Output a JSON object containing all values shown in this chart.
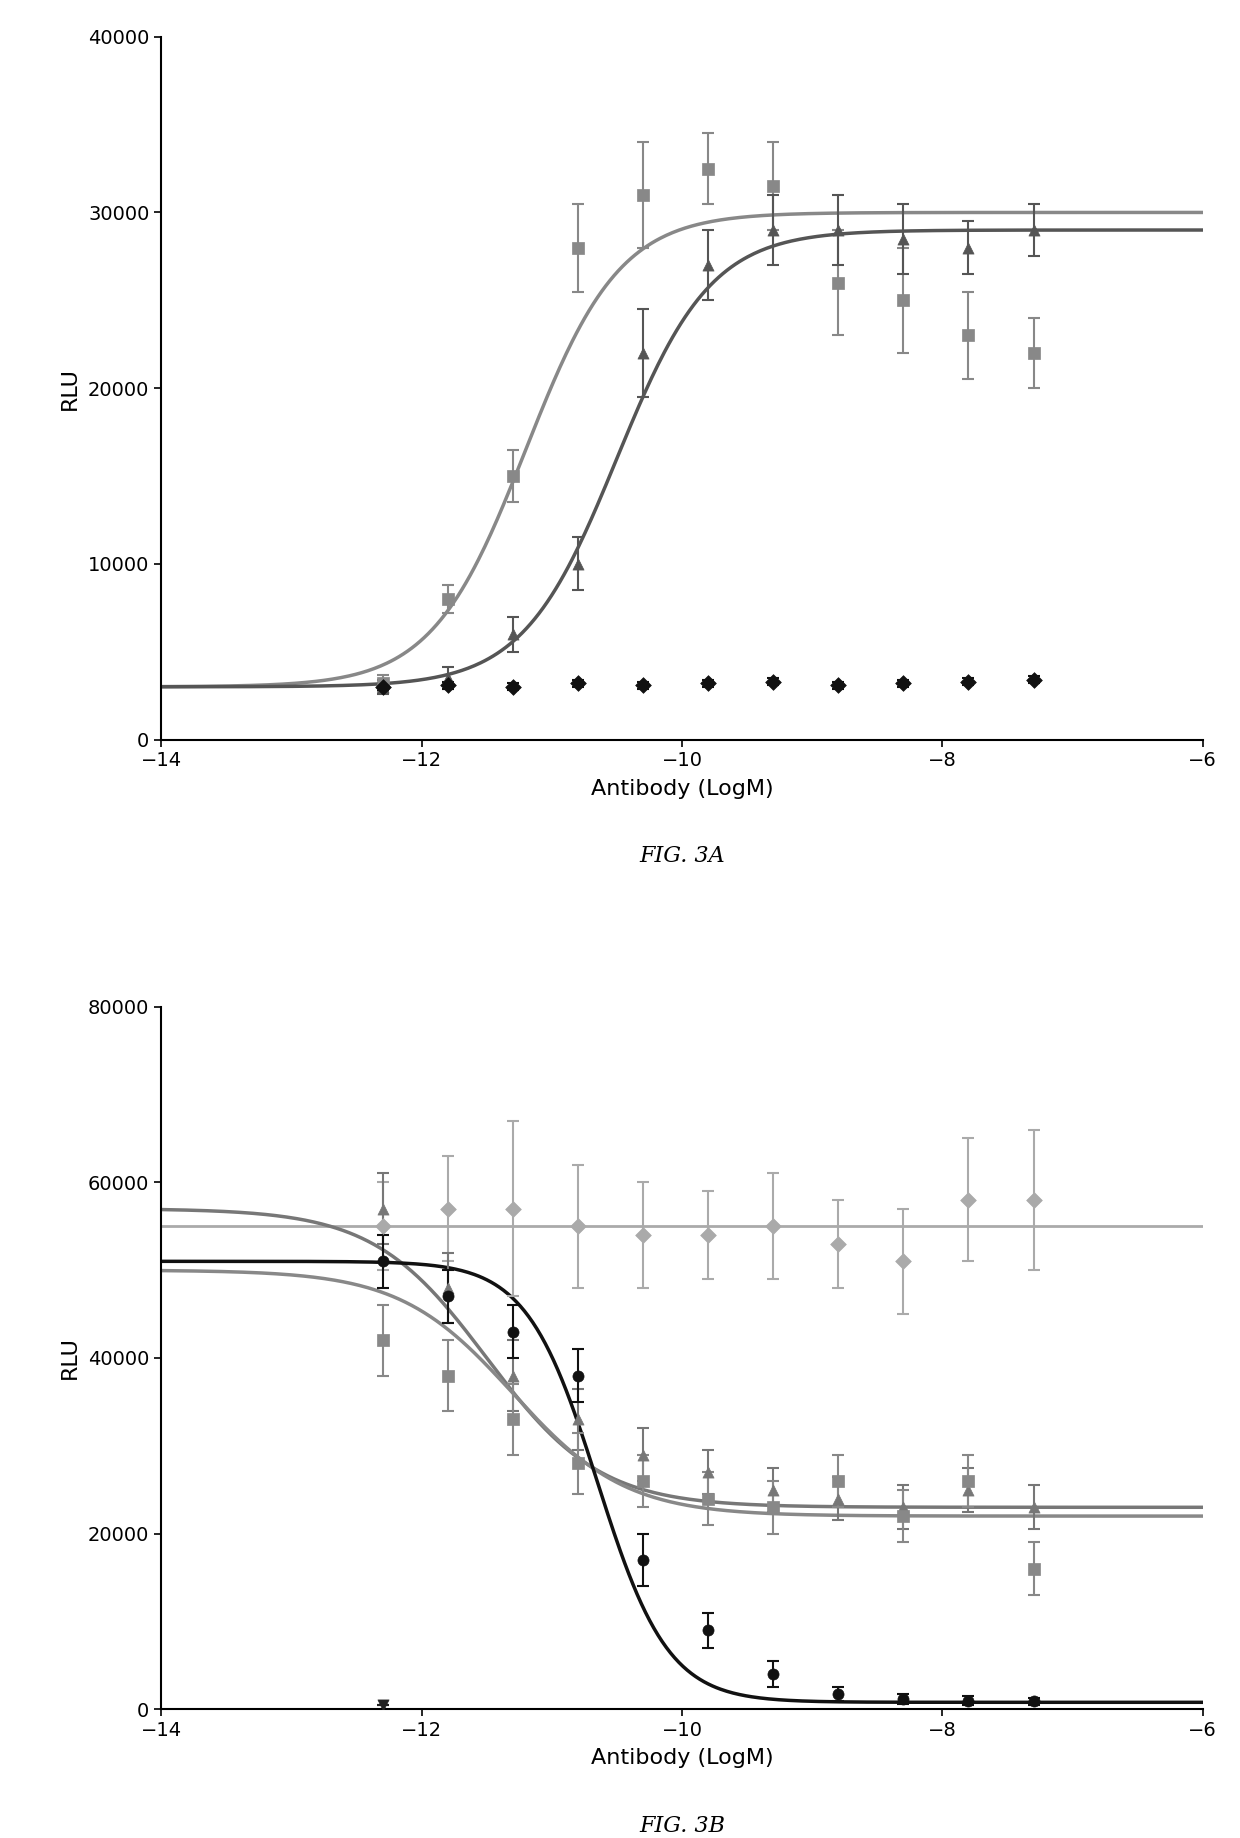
{
  "fig3a": {
    "xlim": [
      -14,
      -6
    ],
    "ylim": [
      0,
      40000
    ],
    "yticks": [
      0,
      10000,
      20000,
      30000,
      40000
    ],
    "xlabel": "Antibody (LogM)",
    "ylabel": "RLU",
    "caption": "FIG. 3A",
    "series": [
      {
        "name": "squares_gray",
        "marker": "s",
        "color": "#888888",
        "x_data": [
          -12.3,
          -11.8,
          -11.3,
          -10.8,
          -10.3,
          -9.8,
          -9.3,
          -8.8,
          -8.3,
          -7.8,
          -7.3
        ],
        "y_data": [
          3200,
          8000,
          15000,
          28000,
          31000,
          32500,
          31500,
          26000,
          25000,
          23000,
          22000
        ],
        "y_err": [
          500,
          800,
          1500,
          2500,
          3000,
          2000,
          2500,
          3000,
          3000,
          2500,
          2000
        ],
        "sigmoid": true,
        "sig_bottom": 3000,
        "sig_top": 30000,
        "sig_ec50": -11.2,
        "sig_hill": 1.2,
        "decreasing": false
      },
      {
        "name": "triangles_gray",
        "marker": "^",
        "color": "#555555",
        "x_data": [
          -12.3,
          -11.8,
          -11.3,
          -10.8,
          -10.3,
          -9.8,
          -9.3,
          -8.8,
          -8.3,
          -7.8,
          -7.3
        ],
        "y_data": [
          3000,
          3500,
          6000,
          10000,
          22000,
          27000,
          29000,
          29000,
          28500,
          28000,
          29000
        ],
        "y_err": [
          400,
          600,
          1000,
          1500,
          2500,
          2000,
          2000,
          2000,
          2000,
          1500,
          1500
        ],
        "sigmoid": true,
        "sig_bottom": 3000,
        "sig_top": 29000,
        "sig_ec50": -10.5,
        "sig_hill": 1.2,
        "decreasing": false
      },
      {
        "name": "diamonds_black",
        "marker": "D",
        "color": "#111111",
        "x_data": [
          -12.3,
          -11.8,
          -11.3,
          -10.8,
          -10.3,
          -9.8,
          -9.3,
          -8.8,
          -8.3,
          -7.8,
          -7.3
        ],
        "y_data": [
          3000,
          3100,
          3000,
          3200,
          3100,
          3200,
          3300,
          3100,
          3200,
          3300,
          3400
        ],
        "y_err": [
          200,
          200,
          200,
          200,
          200,
          200,
          200,
          200,
          200,
          200,
          200
        ],
        "sigmoid": false
      }
    ]
  },
  "fig3b": {
    "xlim": [
      -14,
      -6
    ],
    "ylim": [
      0,
      80000
    ],
    "yticks": [
      0,
      20000,
      40000,
      60000,
      80000
    ],
    "xlabel": "Antibody (LogM)",
    "ylabel": "RLU",
    "caption": "FIG. 3B",
    "series": [
      {
        "name": "diamonds_light",
        "marker": "D",
        "color": "#aaaaaa",
        "x_data": [
          -12.3,
          -11.8,
          -11.3,
          -10.8,
          -10.3,
          -9.8,
          -9.3,
          -8.8,
          -8.3,
          -7.8,
          -7.3
        ],
        "y_data": [
          55000,
          57000,
          57000,
          55000,
          54000,
          54000,
          55000,
          53000,
          51000,
          58000,
          58000
        ],
        "y_err": [
          5000,
          6000,
          10000,
          7000,
          6000,
          5000,
          6000,
          5000,
          6000,
          7000,
          8000
        ],
        "sigmoid": false,
        "flat_line": true,
        "flat_y": 55000,
        "flat_color": "#aaaaaa"
      },
      {
        "name": "triangles_gray",
        "marker": "^",
        "color": "#777777",
        "x_data": [
          -12.3,
          -11.8,
          -11.3,
          -10.8,
          -10.3,
          -9.8,
          -9.3,
          -8.8,
          -8.3,
          -7.8,
          -7.3
        ],
        "y_data": [
          57000,
          48000,
          38000,
          33000,
          29000,
          27000,
          25000,
          24000,
          23000,
          25000,
          23000
        ],
        "y_err": [
          4000,
          4000,
          4000,
          3500,
          3000,
          2500,
          2500,
          2500,
          2500,
          2500,
          2500
        ],
        "sigmoid": true,
        "sig_bottom": 23000,
        "sig_top": 57000,
        "sig_ec50": -11.5,
        "sig_hill": 1.0,
        "decreasing": true
      },
      {
        "name": "squares_gray",
        "marker": "s",
        "color": "#888888",
        "x_data": [
          -12.3,
          -11.8,
          -11.3,
          -10.8,
          -10.3,
          -9.8,
          -9.3,
          -8.8,
          -8.3,
          -7.8,
          -7.3
        ],
        "y_data": [
          42000,
          38000,
          33000,
          28000,
          26000,
          24000,
          23000,
          26000,
          22000,
          26000,
          16000
        ],
        "y_err": [
          4000,
          4000,
          4000,
          3500,
          3000,
          3000,
          3000,
          3000,
          3000,
          3000,
          3000
        ],
        "sigmoid": true,
        "sig_bottom": 22000,
        "sig_top": 50000,
        "sig_ec50": -11.3,
        "sig_hill": 1.0,
        "decreasing": true
      },
      {
        "name": "circles_black",
        "marker": "o",
        "color": "#111111",
        "x_data": [
          -12.3,
          -11.8,
          -11.3,
          -10.8,
          -10.3,
          -9.8,
          -9.3,
          -8.8,
          -8.3,
          -7.8,
          -7.3
        ],
        "y_data": [
          51000,
          47000,
          43000,
          38000,
          17000,
          9000,
          4000,
          1800,
          1200,
          1000,
          900
        ],
        "y_err": [
          3000,
          3000,
          3000,
          3000,
          3000,
          2000,
          1500,
          800,
          600,
          500,
          400
        ],
        "sigmoid": true,
        "sig_bottom": 800,
        "sig_top": 51000,
        "sig_ec50": -10.65,
        "sig_hill": 1.6,
        "decreasing": true
      },
      {
        "name": "triangle_down_black",
        "marker": "v",
        "color": "#222222",
        "x_data": [
          -12.3
        ],
        "y_data": [
          500
        ],
        "y_err": [
          0
        ],
        "sigmoid": false
      }
    ]
  }
}
